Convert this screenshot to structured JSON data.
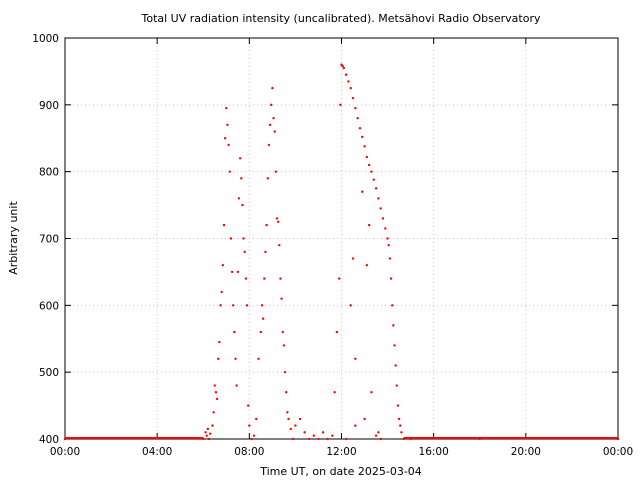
{
  "chart_data": {
    "type": "scatter",
    "title": "Total UV radiation intensity (uncalibrated). Metsähovi Radio Observatory",
    "xlabel": "Time UT, on date 2025-03-04",
    "ylabel": "Arbitrary unit",
    "xlim": [
      0,
      24
    ],
    "ylim": [
      400,
      1000
    ],
    "x_ticks": [
      0,
      4,
      8,
      12,
      16,
      20,
      24
    ],
    "x_tick_labels": [
      "00:00",
      "04:00",
      "08:00",
      "12:00",
      "16:00",
      "20:00",
      "00:00"
    ],
    "y_ticks": [
      400,
      500,
      600,
      700,
      800,
      900,
      1000
    ],
    "y_tick_labels": [
      "400",
      "500",
      "600",
      "700",
      "800",
      "900",
      "1000"
    ],
    "grid": true,
    "series": [
      {
        "color": "#ff0000",
        "points": [
          [
            0.0,
            400
          ],
          [
            6.0,
            400
          ],
          [
            6.1,
            410
          ],
          [
            6.15,
            405
          ],
          [
            6.2,
            415
          ],
          [
            6.25,
            400
          ],
          [
            6.3,
            408
          ],
          [
            6.4,
            420
          ],
          [
            6.45,
            440
          ],
          [
            6.5,
            480
          ],
          [
            6.55,
            470
          ],
          [
            6.6,
            460
          ],
          [
            6.65,
            520
          ],
          [
            6.7,
            545
          ],
          [
            6.75,
            600
          ],
          [
            6.8,
            620
          ],
          [
            6.85,
            660
          ],
          [
            6.9,
            720
          ],
          [
            6.95,
            850
          ],
          [
            7.0,
            895
          ],
          [
            7.05,
            870
          ],
          [
            7.1,
            840
          ],
          [
            7.15,
            800
          ],
          [
            7.2,
            700
          ],
          [
            7.25,
            650
          ],
          [
            7.3,
            600
          ],
          [
            7.35,
            560
          ],
          [
            7.4,
            520
          ],
          [
            7.45,
            480
          ],
          [
            7.5,
            650
          ],
          [
            7.55,
            760
          ],
          [
            7.6,
            820
          ],
          [
            7.65,
            790
          ],
          [
            7.7,
            750
          ],
          [
            7.75,
            700
          ],
          [
            7.8,
            680
          ],
          [
            7.85,
            640
          ],
          [
            7.9,
            600
          ],
          [
            7.95,
            450
          ],
          [
            8.0,
            420
          ],
          [
            8.1,
            400
          ],
          [
            8.2,
            405
          ],
          [
            8.3,
            430
          ],
          [
            8.4,
            520
          ],
          [
            8.5,
            560
          ],
          [
            8.55,
            600
          ],
          [
            8.6,
            580
          ],
          [
            8.65,
            640
          ],
          [
            8.7,
            680
          ],
          [
            8.75,
            720
          ],
          [
            8.8,
            790
          ],
          [
            8.85,
            840
          ],
          [
            8.9,
            870
          ],
          [
            8.95,
            900
          ],
          [
            9.0,
            925
          ],
          [
            9.05,
            880
          ],
          [
            9.1,
            860
          ],
          [
            9.15,
            800
          ],
          [
            9.2,
            730
          ],
          [
            9.25,
            725
          ],
          [
            9.3,
            690
          ],
          [
            9.35,
            640
          ],
          [
            9.4,
            610
          ],
          [
            9.45,
            560
          ],
          [
            9.5,
            540
          ],
          [
            9.55,
            500
          ],
          [
            9.6,
            470
          ],
          [
            9.65,
            440
          ],
          [
            9.7,
            430
          ],
          [
            9.8,
            415
          ],
          [
            9.9,
            400
          ],
          [
            10.0,
            420
          ],
          [
            10.2,
            430
          ],
          [
            10.4,
            410
          ],
          [
            10.6,
            400
          ],
          [
            10.8,
            405
          ],
          [
            11.0,
            400
          ],
          [
            11.2,
            410
          ],
          [
            11.4,
            400
          ],
          [
            11.6,
            405
          ],
          [
            11.7,
            470
          ],
          [
            11.8,
            560
          ],
          [
            11.9,
            640
          ],
          [
            11.95,
            900
          ],
          [
            12.0,
            960
          ],
          [
            12.05,
            958
          ],
          [
            12.1,
            955
          ],
          [
            12.2,
            945
          ],
          [
            12.3,
            935
          ],
          [
            12.4,
            925
          ],
          [
            12.5,
            910
          ],
          [
            12.6,
            895
          ],
          [
            12.7,
            880
          ],
          [
            12.8,
            865
          ],
          [
            12.9,
            852
          ],
          [
            13.0,
            838
          ],
          [
            13.1,
            822
          ],
          [
            13.2,
            810
          ],
          [
            13.3,
            800
          ],
          [
            13.4,
            788
          ],
          [
            13.5,
            775
          ],
          [
            13.6,
            760
          ],
          [
            13.7,
            745
          ],
          [
            13.8,
            730
          ],
          [
            13.9,
            715
          ],
          [
            14.0,
            700
          ],
          [
            14.05,
            690
          ],
          [
            14.1,
            670
          ],
          [
            14.15,
            640
          ],
          [
            14.2,
            600
          ],
          [
            14.25,
            570
          ],
          [
            14.3,
            540
          ],
          [
            14.35,
            510
          ],
          [
            14.4,
            480
          ],
          [
            14.45,
            450
          ],
          [
            14.5,
            430
          ],
          [
            14.55,
            420
          ],
          [
            14.6,
            410
          ],
          [
            14.7,
            400
          ],
          [
            15.0,
            400
          ],
          [
            18.0,
            400
          ],
          [
            24.0,
            400
          ],
          [
            12.4,
            600
          ],
          [
            12.5,
            670
          ],
          [
            12.6,
            520
          ],
          [
            12.9,
            770
          ],
          [
            13.1,
            660
          ],
          [
            13.2,
            720
          ],
          [
            13.3,
            470
          ],
          [
            13.5,
            405
          ],
          [
            13.6,
            410
          ],
          [
            13.7,
            400
          ],
          [
            12.2,
            400
          ],
          [
            12.6,
            420
          ],
          [
            13.0,
            430
          ]
        ]
      }
    ]
  }
}
